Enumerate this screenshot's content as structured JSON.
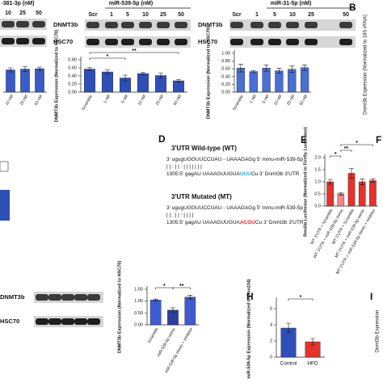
{
  "panel_labels": {
    "b": "B",
    "d": "D",
    "e": "E",
    "f": "F",
    "h": "H",
    "i": "I"
  },
  "blots": [
    {
      "header": "-381-3p (nM)",
      "lanes": [
        "10",
        "25",
        "50"
      ],
      "rows": []
    },
    {
      "header": "miR-539-5p (nM)",
      "lanes": [
        "Scr",
        "1",
        "5",
        "10",
        "25",
        "50"
      ],
      "rows": [
        "DNMT3b",
        "HSC70"
      ]
    },
    {
      "header": "miR-31-5p (nM)",
      "lanes": [
        "Scr",
        "1",
        "5",
        "10",
        "25",
        "50"
      ],
      "rows": [
        "DNMT3b",
        "HSC70"
      ]
    },
    {
      "rows": [
        "DNMT3b",
        "HSC70"
      ]
    }
  ],
  "side_labels": {
    "b_axis": "Dnmt3b Expression (Normalized to 18S rRNA)",
    "i_axis": "Dnmt3b Expression"
  },
  "sequences": {
    "wt_title": "3'UTR Wild-type (WT)",
    "wt_lines": [
      [
        "3' ugugUGGUUCCUAU - UAAAGAGg 5' mmu-miR-539-5p"
      ],
      [
        "| | : | | :       | | | | | | |"
      ],
      [
        "1305:5' gagAU UAAAGUUGUA",
        "UUU",
        "Cu 3' Dnmt3b 3'UTR"
      ]
    ],
    "wt_color": "#29a8d8",
    "mt_title": "3'UTR Mutated (MT)",
    "mt_lines": [
      [
        "3' ugugUGGUUCCUAU - UAAAGAGg 5' mmu-miR-539-5p"
      ],
      [
        "| | : | | :       | | | |"
      ],
      [
        "1305:5' gagAU UAAAGUUGUA",
        "ACGU",
        "Cu 3' Dnmt3b 3'UTR"
      ]
    ],
    "mt_color": "#e3262b"
  },
  "chart_data": [
    {
      "type": "bar",
      "categories": [
        "10 nM",
        "25 nM",
        "50 nM"
      ],
      "values": [
        0.55,
        0.57,
        0.58
      ],
      "errors": [
        0.05,
        0.06,
        0.04
      ],
      "color": "#3a5bc7",
      "ylim": [
        0,
        0.8
      ]
    },
    {
      "type": "bar",
      "ylabel": "DNMT3b Expression (Normalized to HSC70)",
      "categories": [
        "Scramble",
        "1 nM",
        "5 nM",
        "10 nM",
        "25 nM",
        "50 nM"
      ],
      "values": [
        0.57,
        0.5,
        0.35,
        0.46,
        0.41,
        0.28
      ],
      "errors": [
        0.04,
        0.05,
        0.07,
        0.03,
        0.06,
        0.03
      ],
      "color": "#2f4fb8",
      "ylim": [
        0,
        0.8
      ],
      "yticks": [
        {
          "value": 0,
          "label": "0.00"
        },
        {
          "value": 0.2,
          "label": "0.20"
        },
        {
          "value": 0.4,
          "label": "0.40"
        },
        {
          "value": 0.6,
          "label": "0.60"
        },
        {
          "value": 0.8,
          "label": "0.80"
        }
      ],
      "annotations": [
        "*",
        "**"
      ]
    },
    {
      "type": "bar",
      "ylabel": "DNMT3b Expression (Normalized to HSC70)",
      "categories": [
        "Scramble",
        "1 nM",
        "5 nM",
        "10 nM",
        "25 nM",
        "50 nM"
      ],
      "values": [
        0.62,
        0.53,
        0.62,
        0.55,
        0.59,
        0.63
      ],
      "errors": [
        0.1,
        0.03,
        0.08,
        0.06,
        0.08,
        0.07
      ],
      "color": "#4a6fd4",
      "ylim": [
        0,
        1.0
      ],
      "yticks": [
        {
          "value": 0,
          "label": "0.00"
        },
        {
          "value": 0.2,
          "label": "0.20"
        },
        {
          "value": 0.4,
          "label": "0.40"
        },
        {
          "value": 0.6,
          "label": "0.60"
        },
        {
          "value": 0.8,
          "label": "0.80"
        },
        {
          "value": 1,
          "label": "1.00"
        }
      ]
    },
    {
      "type": "bar",
      "ylabel": "Renilla Luciferase (Normalized to Firefly Luciferase)",
      "categories": [
        "WT 3'UTR + Scramble",
        "WT 3'UTR + miR-539-5p mimic",
        "MT 3'UTR + Scramble",
        "MT 3'UTR + miR-539-5p mimic",
        "MT 3'UTR + miR-539-5p mimic + Inhibitor"
      ],
      "values": [
        1.0,
        0.5,
        1.35,
        1.0,
        1.05
      ],
      "errors": [
        0.1,
        0.04,
        0.2,
        0.12,
        0.07
      ],
      "colors": [
        "#e5322a",
        "#f2868a",
        "#e5322a",
        "#e5322a",
        "#e5322a"
      ],
      "ylim": [
        0,
        2.0
      ],
      "yticks": [
        {
          "value": 0,
          "label": "0.0"
        },
        0.5,
        {
          "value": 1,
          "label": "1.0"
        },
        1.5,
        {
          "value": 2,
          "label": "2.0"
        }
      ],
      "annotations": [
        "*",
        "**",
        "*"
      ]
    },
    {
      "type": "bar",
      "ylabel": "DNMT3b Expression (Normalized to HSC70)",
      "categories": [
        "Scramble",
        "miR-539-5p mimic",
        "miR-539-5p mimic + Inhibitor"
      ],
      "values": [
        1.05,
        0.62,
        1.17
      ],
      "errors": [
        0.04,
        0.1,
        0.08
      ],
      "colors": [
        "#3f5bd0",
        "#2a3f9e",
        "#3f5bd0"
      ],
      "ylim": [
        0,
        1.5
      ],
      "yticks": [
        {
          "value": 0,
          "label": "0.00"
        },
        {
          "value": 0.5,
          "label": "0.50"
        },
        {
          "value": 1,
          "label": "1.00"
        },
        {
          "value": 1.5,
          "label": "1.50"
        }
      ],
      "annotations": [
        "*",
        "**"
      ]
    },
    {
      "type": "bar",
      "ylabel": "miR-539-5p Expression (Normalized to Sno234)",
      "categories": [
        "Control",
        "HFD"
      ],
      "values": [
        3.6,
        1.9
      ],
      "errors": [
        0.6,
        0.4
      ],
      "colors": [
        "#2f4fb8",
        "#e5322a"
      ],
      "ylim": [
        0,
        7
      ],
      "yticks": [
        0,
        2,
        4,
        6
      ],
      "annotations": [
        "*"
      ]
    }
  ]
}
